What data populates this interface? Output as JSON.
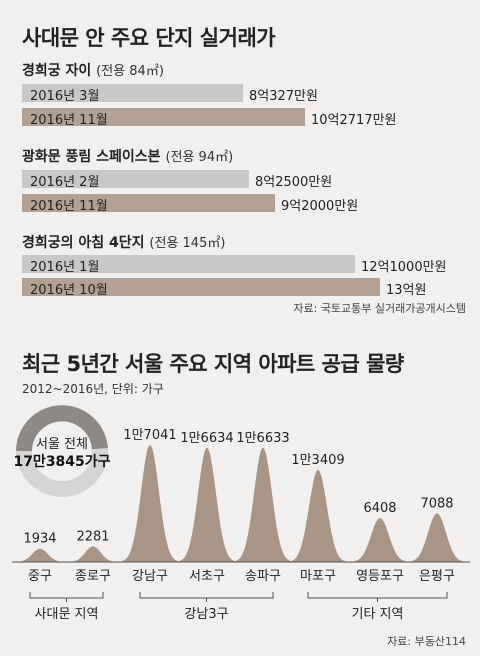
{
  "section1": {
    "title": "사대문 안 주요 단지 실거래가",
    "source": "자료: 국토교통부 실거래가공개시스템",
    "complexes": [
      {
        "name": "경희궁 자이",
        "size": "(전용 84㎡)",
        "rows": [
          {
            "label": "2016년 3월",
            "value_text": "8억327만원",
            "value": 80327
          },
          {
            "label": "2016년 11월",
            "value_text": "10억2717만원",
            "value": 102717
          }
        ]
      },
      {
        "name": "광화문 풍림 스페이스본",
        "size": "(전용 94㎡)",
        "rows": [
          {
            "label": "2016년 2월",
            "value_text": "8억2500만원",
            "value": 82500
          },
          {
            "label": "2016년 11월",
            "value_text": "9억2000만원",
            "value": 92000
          }
        ]
      },
      {
        "name": "경희궁의 아침 4단지",
        "size": "(전용 145㎡)",
        "rows": [
          {
            "label": "2016년 1월",
            "value_text": "12억1000만원",
            "value": 121000
          },
          {
            "label": "2016년 10월",
            "value_text": "13억원",
            "value": 130000
          }
        ]
      }
    ]
  },
  "section2": {
    "title": "최근 5년간 서울 주요 지역 아파트 공급 물량",
    "subtitle": "2012~2016년, 단위: 가구",
    "source": "자료: 부동산114",
    "donut": {
      "line1": "서울 전체",
      "line2": "17만3845가구",
      "share": 0.49
    }
  },
  "chart_data": {
    "type": "area",
    "categories": [
      "중구",
      "종로구",
      "강남구",
      "서초구",
      "송파구",
      "마포구",
      "영등포구",
      "은평구"
    ],
    "values": [
      1934,
      2281,
      17041,
      16634,
      16633,
      13409,
      6408,
      7088
    ],
    "value_labels": [
      "1934",
      "2281",
      "1만7041",
      "1만6634",
      "1만6633",
      "1만3409",
      "6408",
      "7088"
    ],
    "groups": [
      {
        "label": "사대문 지역",
        "from": 0,
        "to": 1
      },
      {
        "label": "강남3구",
        "from": 2,
        "to": 4
      },
      {
        "label": "기타 지역",
        "from": 5,
        "to": 7
      }
    ],
    "total": "17만3845가구"
  },
  "colors": {
    "bar_old": "#c9c8c7",
    "bar_new": "#b3a294",
    "peak": "#a89585",
    "donut_light": "#d6d5d3",
    "donut_dark": "#8c8987"
  }
}
